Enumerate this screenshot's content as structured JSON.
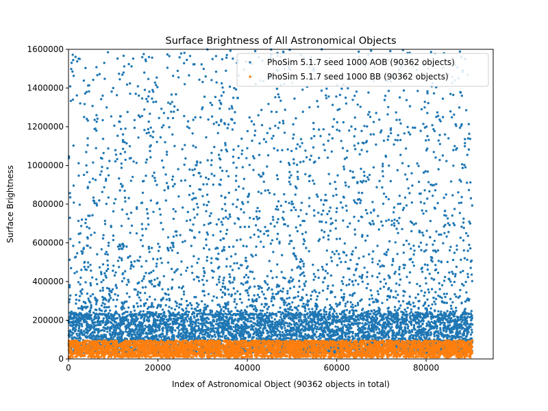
{
  "chart_data": {
    "type": "scatter",
    "title": "Surface Brightness of All Astronomical Objects",
    "xlabel": "Index of Astronomical Object (90362 objects in total)",
    "ylabel": "Surface Brightness",
    "xlim": [
      0,
      95000
    ],
    "ylim": [
      0,
      1600000
    ],
    "x_ticks": [
      0,
      20000,
      40000,
      60000,
      80000
    ],
    "y_ticks": [
      0,
      200000,
      400000,
      600000,
      800000,
      1000000,
      1200000,
      1400000,
      1600000
    ],
    "grid": false,
    "legend_position": "top-right",
    "total_objects": 90362,
    "series": [
      {
        "name": "PhoSim 5.1.7 seed 1000 AOB (90362 objects)",
        "color": "#1f77b4",
        "dense_band": [
          30000,
          230000
        ],
        "sparse_range": [
          230000,
          1600000
        ],
        "sample_points": [
          [
            2500,
            1550000
          ],
          [
            8000,
            1530000
          ],
          [
            18000,
            1560000
          ],
          [
            33000,
            1565000
          ],
          [
            52000,
            1570000
          ],
          [
            84000,
            1580000
          ],
          [
            1000,
            1340000
          ],
          [
            10000,
            1400000
          ],
          [
            26000,
            1420000
          ],
          [
            45000,
            1450000
          ],
          [
            62000,
            1350000
          ],
          [
            88000,
            1360000
          ],
          [
            6000,
            1190000
          ],
          [
            16000,
            1250000
          ],
          [
            30000,
            1300000
          ],
          [
            48000,
            1230000
          ],
          [
            70000,
            1180000
          ],
          [
            85000,
            1140000
          ],
          [
            4000,
            1000000
          ],
          [
            22000,
            1070000
          ],
          [
            38000,
            1100000
          ],
          [
            58000,
            1040000
          ],
          [
            78000,
            1010000
          ],
          [
            12000,
            890000
          ],
          [
            28000,
            950000
          ],
          [
            44000,
            870000
          ],
          [
            66000,
            920000
          ],
          [
            90000,
            830000
          ],
          [
            3000,
            720000
          ],
          [
            19000,
            760000
          ],
          [
            35000,
            800000
          ],
          [
            55000,
            740000
          ],
          [
            75000,
            780000
          ],
          [
            9000,
            600000
          ],
          [
            25000,
            640000
          ],
          [
            42000,
            580000
          ],
          [
            60000,
            620000
          ],
          [
            82000,
            560000
          ],
          [
            14000,
            480000
          ],
          [
            32000,
            520000
          ],
          [
            50000,
            460000
          ],
          [
            68000,
            500000
          ],
          [
            86000,
            440000
          ],
          [
            5000,
            380000
          ],
          [
            21000,
            360000
          ],
          [
            40000,
            400000
          ],
          [
            64000,
            340000
          ],
          [
            80000,
            390000
          ]
        ]
      },
      {
        "name": "PhoSim 5.1.7 seed 1000 BB (90362 objects)",
        "color": "#ff7f0e",
        "dense_band": [
          8000,
          95000
        ]
      }
    ]
  }
}
